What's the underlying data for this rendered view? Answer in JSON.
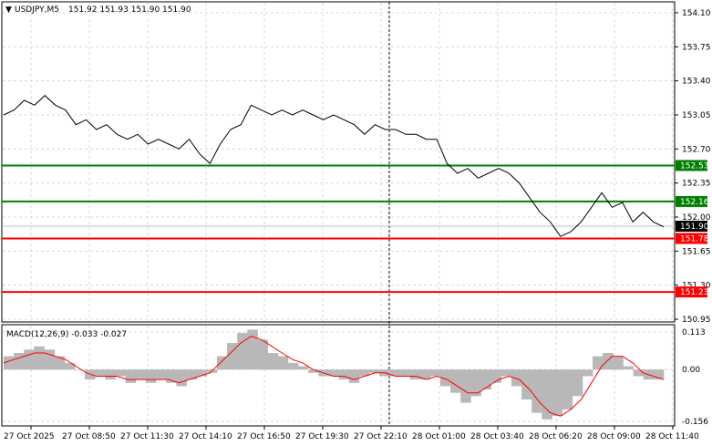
{
  "header": {
    "symbol": "USDJPY,M5",
    "ohlc": "151.92 151.93 151.90 151.90"
  },
  "macd": {
    "label": "MACD(12,26,9) -0.033 -0.027",
    "scale_labels": [
      "0.113",
      "0.00",
      "-0.156"
    ]
  },
  "price_axis": {
    "labels": [
      "154.10",
      "153.75",
      "153.40",
      "153.05",
      "152.70",
      "152.35",
      "152.00",
      "151.65",
      "151.30",
      "150.95"
    ]
  },
  "levels": [
    {
      "price": 152.53,
      "label": "152.53",
      "color": "#008000"
    },
    {
      "price": 152.16,
      "label": "152.16",
      "color": "#008000"
    },
    {
      "price": 151.78,
      "label": "151.78",
      "color": "#ff0000"
    },
    {
      "price": 151.23,
      "label": "151.23",
      "color": "#ff0000"
    }
  ],
  "current_price": {
    "label": "151.90",
    "color": "#000000"
  },
  "time_axis": {
    "labels": [
      "27 Oct 2025",
      "27 Oct 08:50",
      "27 Oct 11:30",
      "27 Oct 14:10",
      "27 Oct 16:50",
      "27 Oct 19:30",
      "27 Oct 22:10",
      "28 Oct 01:00",
      "28 Oct 03:40",
      "28 Oct 06:20",
      "28 Oct 09:00",
      "28 Oct 11:40"
    ]
  },
  "chart_data": {
    "type": "line",
    "title": "USDJPY,M5",
    "y_range": [
      150.95,
      154.1
    ],
    "price_series": [
      153.05,
      153.1,
      153.2,
      153.15,
      153.25,
      153.15,
      153.1,
      152.95,
      153.0,
      152.9,
      152.95,
      152.85,
      152.8,
      152.85,
      152.75,
      152.8,
      152.75,
      152.7,
      152.8,
      152.65,
      152.55,
      152.75,
      152.9,
      152.95,
      153.15,
      153.1,
      153.05,
      153.1,
      153.05,
      153.1,
      153.05,
      153.0,
      153.05,
      153.0,
      152.95,
      152.85,
      152.95,
      152.9,
      152.9,
      152.85,
      152.85,
      152.8,
      152.8,
      152.55,
      152.45,
      152.5,
      152.4,
      152.45,
      152.5,
      152.45,
      152.35,
      152.2,
      152.05,
      151.95,
      151.8,
      151.85,
      151.95,
      152.1,
      152.25,
      152.1,
      152.15,
      151.95,
      152.05,
      151.95,
      151.9
    ],
    "macd_histogram": [
      0.04,
      0.05,
      0.06,
      0.07,
      0.06,
      0.04,
      0.02,
      0.0,
      -0.03,
      -0.02,
      -0.03,
      -0.02,
      -0.04,
      -0.03,
      -0.04,
      -0.03,
      -0.04,
      -0.05,
      -0.03,
      -0.02,
      -0.01,
      0.04,
      0.08,
      0.11,
      0.12,
      0.09,
      0.05,
      0.04,
      0.02,
      0.01,
      -0.01,
      -0.02,
      -0.02,
      -0.03,
      -0.04,
      -0.02,
      -0.01,
      -0.02,
      -0.02,
      -0.02,
      -0.03,
      -0.03,
      -0.02,
      -0.05,
      -0.07,
      -0.1,
      -0.08,
      -0.06,
      -0.04,
      -0.02,
      -0.05,
      -0.09,
      -0.13,
      -0.15,
      -0.14,
      -0.12,
      -0.08,
      -0.02,
      0.04,
      0.05,
      0.04,
      0.01,
      -0.02,
      -0.03,
      -0.03
    ],
    "macd_signal": [
      0.02,
      0.03,
      0.04,
      0.05,
      0.05,
      0.04,
      0.03,
      0.01,
      -0.01,
      -0.02,
      -0.02,
      -0.02,
      -0.03,
      -0.03,
      -0.03,
      -0.03,
      -0.03,
      -0.04,
      -0.03,
      -0.02,
      -0.01,
      0.02,
      0.05,
      0.08,
      0.1,
      0.09,
      0.07,
      0.05,
      0.03,
      0.02,
      0.0,
      -0.01,
      -0.02,
      -0.02,
      -0.03,
      -0.02,
      -0.01,
      -0.01,
      -0.02,
      -0.02,
      -0.02,
      -0.03,
      -0.02,
      -0.03,
      -0.05,
      -0.07,
      -0.07,
      -0.05,
      -0.03,
      -0.02,
      -0.03,
      -0.06,
      -0.1,
      -0.13,
      -0.14,
      -0.12,
      -0.09,
      -0.04,
      0.01,
      0.04,
      0.04,
      0.02,
      -0.01,
      -0.02,
      -0.03
    ]
  }
}
